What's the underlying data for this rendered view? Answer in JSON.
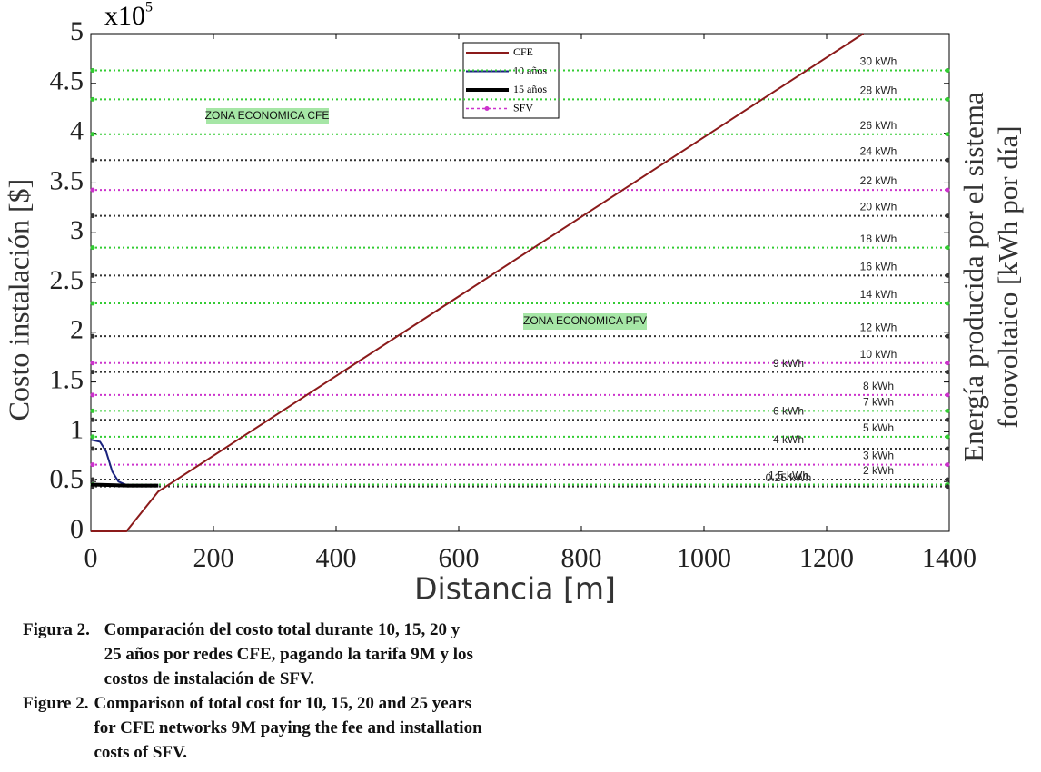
{
  "chart_data": {
    "type": "line",
    "y_multiplier": {
      "base": "x10",
      "exponent": "5"
    },
    "xlabel": "Distancia [m]",
    "ylabel": "Costo instalación [$]",
    "y2label": [
      "Energía producida por el sistema",
      "fotovoltaico [kWh por día]"
    ],
    "xlim": [
      0,
      1400
    ],
    "xticks": [
      0,
      200,
      400,
      600,
      800,
      1000,
      1200,
      1400
    ],
    "ylim": [
      0,
      5
    ],
    "yticks": [
      0,
      0.5,
      1,
      1.5,
      2,
      2.5,
      3,
      3.5,
      4,
      4.5,
      5
    ],
    "legend": "upper-center",
    "series": [
      {
        "name": "CFE",
        "color": "#8b1a1a",
        "width": 2,
        "x": [
          0,
          58,
          110,
          1260
        ],
        "values": [
          0,
          0,
          0.4,
          5
        ]
      },
      {
        "name": "10 años",
        "color": "#1a237e",
        "width": 2,
        "x": [
          0,
          15,
          25,
          35,
          45,
          60,
          110
        ],
        "values": [
          0.92,
          0.9,
          0.8,
          0.6,
          0.5,
          0.46,
          0.46
        ]
      },
      {
        "name": "15 años",
        "color": "#000000",
        "width": 4,
        "x": [
          0,
          60,
          110
        ],
        "values": [
          0.47,
          0.46,
          0.46
        ]
      }
    ],
    "sfv": {
      "name": "SFV",
      "color": "#cc33cc",
      "lines": [
        {
          "label": "30 kWh",
          "value": 4.63,
          "color": "#33cc33"
        },
        {
          "label": "28 kWh",
          "value": 4.34,
          "color": "#33cc33"
        },
        {
          "label": "26 kWh",
          "value": 3.99,
          "color": "#33cc33"
        },
        {
          "label": "24 kWh",
          "value": 3.73,
          "color": "#333333"
        },
        {
          "label": "22 kWh",
          "value": 3.43,
          "color": "#cc33cc"
        },
        {
          "label": "20 kWh",
          "value": 3.17,
          "color": "#333333"
        },
        {
          "label": "18 kWh",
          "value": 2.85,
          "color": "#33cc33"
        },
        {
          "label": "16 kWh",
          "value": 2.57,
          "color": "#333333"
        },
        {
          "label": "14 kWh",
          "value": 2.29,
          "color": "#33cc33"
        },
        {
          "label": "12 kWh",
          "value": 1.96,
          "color": "#333333"
        },
        {
          "label": "10 kWh",
          "value": 1.69,
          "color": "#cc33cc"
        },
        {
          "label": "9 kWh",
          "value": 1.6,
          "color": "#333333"
        },
        {
          "label": "8 kWh",
          "value": 1.37,
          "color": "#cc33cc"
        },
        {
          "label": "7 kWh",
          "value": 1.21,
          "color": "#33cc33"
        },
        {
          "label": "6 kWh",
          "value": 1.12,
          "color": "#333333"
        },
        {
          "label": "5 kWh",
          "value": 0.95,
          "color": "#33cc33"
        },
        {
          "label": "4 kWh",
          "value": 0.83,
          "color": "#333333"
        },
        {
          "label": "3 kWh",
          "value": 0.67,
          "color": "#cc33cc"
        },
        {
          "label": "2 kWh",
          "value": 0.52,
          "color": "#333333"
        },
        {
          "label": "1.5 kWh",
          "value": 0.47,
          "color": "#33cc33"
        },
        {
          "label": "0.25 kWh",
          "value": 0.45,
          "color": "#333333"
        }
      ]
    },
    "annotations": [
      "ZONA ECONOMICA CFE",
      "ZONA ECONOMICA PFV"
    ]
  },
  "caption": [
    {
      "label": "Figura 2.",
      "lines": [
        "Comparación del costo total durante 10, 15, 20 y",
        "25 años por redes CFE, pagando la tarifa 9M y los",
        "costos de instalación de SFV."
      ]
    },
    {
      "label": "Figure 2.",
      "lines": [
        "Comparison of total cost for 10, 15, 20 and 25 years",
        "for CFE networks 9M paying the fee and installation",
        "costs of SFV."
      ]
    }
  ]
}
